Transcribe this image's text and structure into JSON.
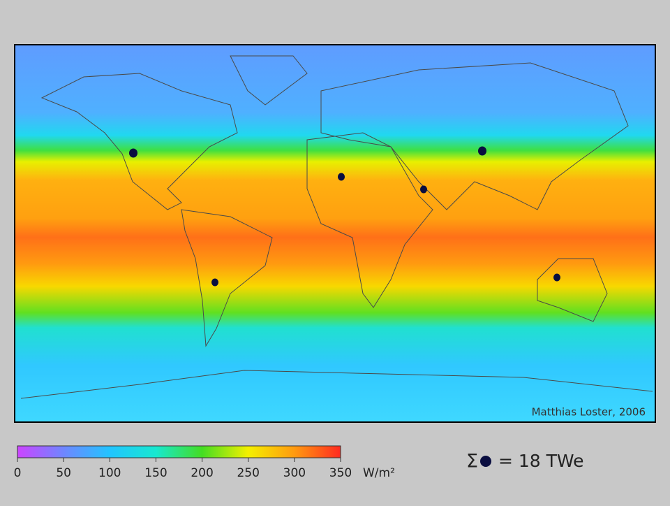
{
  "map": {
    "credit": "Matthias Loster, 2006",
    "colorbar": {
      "range": [
        0,
        350
      ],
      "ticks": [
        0,
        50,
        100,
        150,
        200,
        250,
        300,
        350
      ],
      "unit": "W/m²",
      "colors": [
        "#cc44ff",
        "#6f86ff",
        "#22c4ff",
        "#18e8d0",
        "#44dd22",
        "#f4f000",
        "#ff9a10",
        "#ff2a20"
      ]
    },
    "legend": {
      "symbol": "Σ",
      "text": "= 18 TWe"
    }
  }
}
